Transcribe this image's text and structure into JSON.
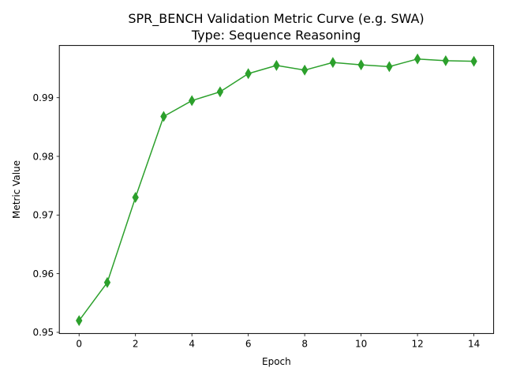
{
  "chart_data": {
    "type": "line",
    "title_line1": "SPR_BENCH Validation Metric Curve (e.g. SWA)",
    "title_line2": "Type: Sequence Reasoning",
    "xlabel": "Epoch",
    "ylabel": "Metric Value",
    "xlim": [
      -0.7,
      14.7
    ],
    "ylim": [
      0.9498,
      0.9989
    ],
    "x_ticks": [
      0,
      2,
      4,
      6,
      8,
      10,
      12,
      14
    ],
    "x_tick_labels": [
      "0",
      "2",
      "4",
      "6",
      "8",
      "10",
      "12",
      "14"
    ],
    "y_ticks": [
      0.95,
      0.96,
      0.97,
      0.98,
      0.99
    ],
    "y_tick_labels": [
      "0.95",
      "0.96",
      "0.97",
      "0.98",
      "0.99"
    ],
    "grid": false,
    "series": [
      {
        "color": "#2ca02c",
        "marker": "thin-diamond",
        "x": [
          0,
          1,
          2,
          3,
          4,
          5,
          6,
          7,
          8,
          9,
          10,
          11,
          12,
          13,
          14
        ],
        "y": [
          0.952,
          0.9585,
          0.973,
          0.9868,
          0.9895,
          0.991,
          0.9941,
          0.9955,
          0.9947,
          0.996,
          0.9956,
          0.9953,
          0.9966,
          0.9963,
          0.9962
        ]
      }
    ]
  }
}
